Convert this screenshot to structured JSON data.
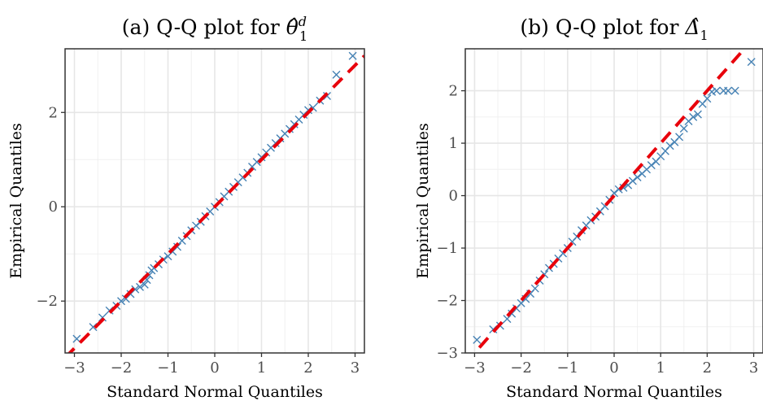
{
  "chart_data": [
    {
      "type": "scatter",
      "title_prefix": "(a) Q-Q plot for ",
      "title_math": "θ̂",
      "title_math_sup": "d",
      "title_math_sub": "1",
      "xlabel": "Standard Normal Quantiles",
      "ylabel": "Empirical Quantiles",
      "xlim": [
        -3.2,
        3.2
      ],
      "ylim": [
        -3.1,
        3.35
      ],
      "xticks": [
        -3,
        -2,
        -1,
        0,
        1,
        2,
        3
      ],
      "xtick_labels": [
        "−3",
        "−2",
        "−1",
        "0",
        "1",
        "2",
        "3"
      ],
      "yticks": [
        -2,
        0,
        2
      ],
      "ytick_labels": [
        "−2",
        "0",
        "2"
      ],
      "grid": true,
      "marker": "x",
      "marker_color": "#4682b4",
      "reference_line": {
        "intercept": 0.0,
        "slope": 1.0,
        "color": "#e8000b",
        "style": "dashed"
      },
      "points": [
        [
          -2.95,
          -2.8
        ],
        [
          -2.6,
          -2.55
        ],
        [
          -2.4,
          -2.35
        ],
        [
          -2.25,
          -2.2
        ],
        [
          -2.1,
          -2.1
        ],
        [
          -2.0,
          -2.0
        ],
        [
          -1.9,
          -1.95
        ],
        [
          -1.8,
          -1.85
        ],
        [
          -1.7,
          -1.75
        ],
        [
          -1.6,
          -1.7
        ],
        [
          -1.5,
          -1.65
        ],
        [
          -1.45,
          -1.55
        ],
        [
          -1.4,
          -1.45
        ],
        [
          -1.35,
          -1.35
        ],
        [
          -1.3,
          -1.3
        ],
        [
          -1.2,
          -1.22
        ],
        [
          -1.1,
          -1.12
        ],
        [
          -1.0,
          -1.05
        ],
        [
          -0.9,
          -0.95
        ],
        [
          -0.8,
          -0.85
        ],
        [
          -0.7,
          -0.72
        ],
        [
          -0.6,
          -0.62
        ],
        [
          -0.5,
          -0.5
        ],
        [
          -0.4,
          -0.4
        ],
        [
          -0.3,
          -0.32
        ],
        [
          -0.2,
          -0.2
        ],
        [
          -0.1,
          -0.1
        ],
        [
          0.0,
          0.0
        ],
        [
          0.1,
          0.1
        ],
        [
          0.2,
          0.22
        ],
        [
          0.3,
          0.32
        ],
        [
          0.4,
          0.42
        ],
        [
          0.5,
          0.52
        ],
        [
          0.6,
          0.62
        ],
        [
          0.7,
          0.72
        ],
        [
          0.8,
          0.85
        ],
        [
          0.9,
          0.95
        ],
        [
          1.0,
          1.05
        ],
        [
          1.1,
          1.15
        ],
        [
          1.2,
          1.25
        ],
        [
          1.3,
          1.35
        ],
        [
          1.4,
          1.45
        ],
        [
          1.5,
          1.55
        ],
        [
          1.6,
          1.65
        ],
        [
          1.7,
          1.75
        ],
        [
          1.8,
          1.85
        ],
        [
          1.9,
          1.95
        ],
        [
          2.0,
          2.05
        ],
        [
          2.1,
          2.1
        ],
        [
          2.25,
          2.25
        ],
        [
          2.4,
          2.35
        ],
        [
          2.6,
          2.8
        ],
        [
          2.95,
          3.2
        ]
      ]
    },
    {
      "type": "scatter",
      "title_prefix": "(b) Q-Q plot for ",
      "title_math": "Δ̂",
      "title_math_sup": "",
      "title_math_sub": "1",
      "xlabel": "Standard Normal Quantiles",
      "ylabel": "Empirical Quantiles",
      "xlim": [
        -3.2,
        3.2
      ],
      "ylim": [
        -3.0,
        2.8
      ],
      "xticks": [
        -3,
        -2,
        -1,
        0,
        1,
        2,
        3
      ],
      "xtick_labels": [
        "−3",
        "−2",
        "−1",
        "0",
        "1",
        "2",
        "3"
      ],
      "yticks": [
        -3,
        -2,
        -1,
        0,
        1,
        2
      ],
      "ytick_labels": [
        "−3",
        "−2",
        "−1",
        "0",
        "1",
        "2"
      ],
      "grid": true,
      "marker": "x",
      "marker_color": "#4682b4",
      "reference_line": {
        "intercept": 0.0,
        "slope": 1.0,
        "color": "#e8000b",
        "style": "dashed"
      },
      "points": [
        [
          -2.95,
          -2.75
        ],
        [
          -2.6,
          -2.55
        ],
        [
          -2.45,
          -2.48
        ],
        [
          -2.3,
          -2.35
        ],
        [
          -2.2,
          -2.25
        ],
        [
          -2.1,
          -2.15
        ],
        [
          -2.0,
          -2.05
        ],
        [
          -1.9,
          -1.97
        ],
        [
          -1.8,
          -1.87
        ],
        [
          -1.7,
          -1.77
        ],
        [
          -1.6,
          -1.62
        ],
        [
          -1.5,
          -1.5
        ],
        [
          -1.4,
          -1.38
        ],
        [
          -1.3,
          -1.3
        ],
        [
          -1.2,
          -1.2
        ],
        [
          -1.1,
          -1.1
        ],
        [
          -1.0,
          -1.0
        ],
        [
          -0.9,
          -0.88
        ],
        [
          -0.8,
          -0.78
        ],
        [
          -0.7,
          -0.66
        ],
        [
          -0.6,
          -0.57
        ],
        [
          -0.5,
          -0.47
        ],
        [
          -0.4,
          -0.4
        ],
        [
          -0.3,
          -0.3
        ],
        [
          -0.2,
          -0.2
        ],
        [
          -0.1,
          -0.08
        ],
        [
          0.0,
          0.05
        ],
        [
          0.1,
          0.12
        ],
        [
          0.2,
          0.15
        ],
        [
          0.3,
          0.2
        ],
        [
          0.4,
          0.28
        ],
        [
          0.5,
          0.35
        ],
        [
          0.6,
          0.42
        ],
        [
          0.7,
          0.5
        ],
        [
          0.8,
          0.58
        ],
        [
          0.9,
          0.65
        ],
        [
          1.0,
          0.75
        ],
        [
          1.1,
          0.85
        ],
        [
          1.2,
          0.95
        ],
        [
          1.3,
          1.02
        ],
        [
          1.4,
          1.12
        ],
        [
          1.5,
          1.28
        ],
        [
          1.6,
          1.42
        ],
        [
          1.7,
          1.5
        ],
        [
          1.8,
          1.55
        ],
        [
          1.9,
          1.75
        ],
        [
          2.0,
          1.85
        ],
        [
          2.1,
          1.98
        ],
        [
          2.2,
          2.0
        ],
        [
          2.35,
          2.0
        ],
        [
          2.45,
          2.0
        ],
        [
          2.6,
          2.0
        ],
        [
          2.95,
          2.55
        ]
      ]
    }
  ]
}
